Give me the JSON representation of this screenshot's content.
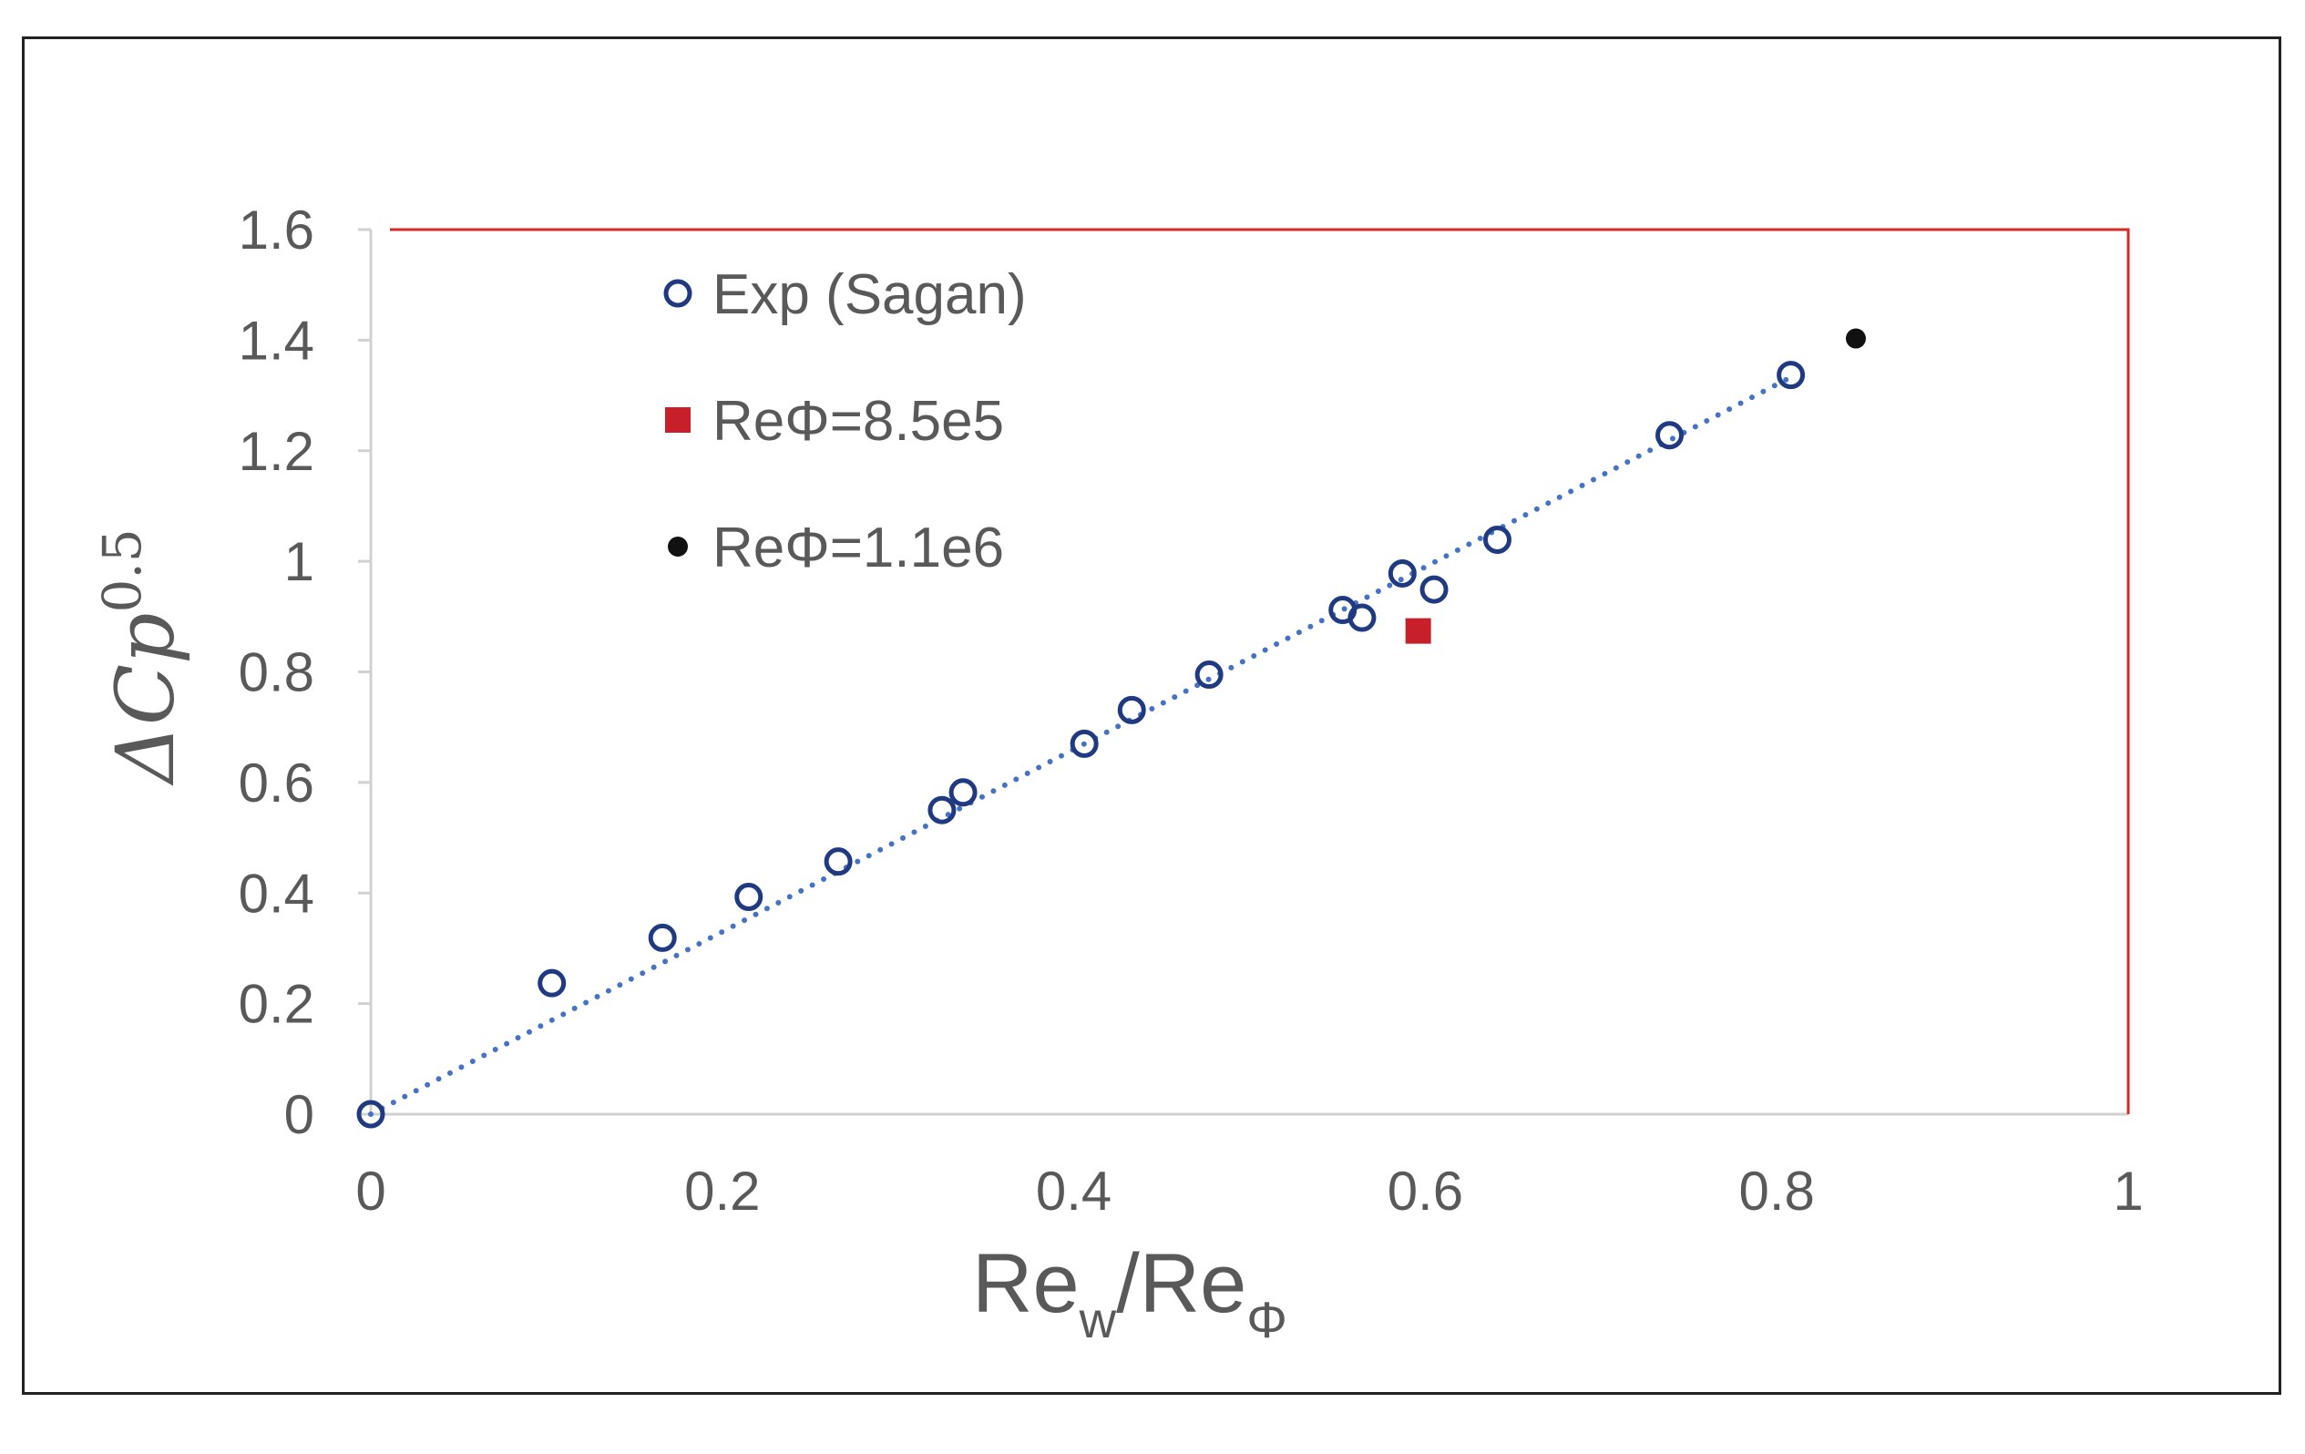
{
  "chart_data": {
    "type": "scatter",
    "title": "",
    "xlabel": {
      "main": "Re",
      "sub1": "w",
      "mid": "/Re",
      "sub2": "Φ"
    },
    "ylabel": {
      "main": "ΔCp",
      "sup": "0.5"
    },
    "xlim": [
      0,
      1
    ],
    "ylim": [
      0,
      1.6
    ],
    "xticks": [
      "0",
      "0.2",
      "0.4",
      "0.6",
      "0.8",
      "1"
    ],
    "yticks": [
      "0",
      "0.2",
      "0.4",
      "0.6",
      "0.8",
      "1",
      "1.2",
      "1.4",
      "1.6"
    ],
    "grid": false,
    "legend_position": "top-left",
    "series": [
      {
        "name": "Exp (Sagan)",
        "marker": "open-circle",
        "color": "#1f3a80",
        "x": [
          0,
          0.103,
          0.166,
          0.215,
          0.266,
          0.325,
          0.337,
          0.406,
          0.433,
          0.477,
          0.553,
          0.564,
          0.587,
          0.605,
          0.641,
          0.739,
          0.808
        ],
        "y": [
          0,
          0.237,
          0.319,
          0.393,
          0.457,
          0.55,
          0.582,
          0.67,
          0.731,
          0.795,
          0.912,
          0.898,
          0.978,
          0.949,
          1.039,
          1.228,
          1.337
        ]
      },
      {
        "name": "ReΦ=8.5e5",
        "marker": "square",
        "color": "#c8202a",
        "x": [
          0.596
        ],
        "y": [
          0.874
        ]
      },
      {
        "name": "ReΦ=1.1e6",
        "marker": "filled-circle",
        "color": "#111111",
        "x": [
          0.845
        ],
        "y": [
          1.403
        ]
      }
    ],
    "trendline": {
      "style": "dotted",
      "color": "#4472c4",
      "x": [
        0,
        0.808
      ],
      "y": [
        0,
        1.333
      ]
    }
  }
}
